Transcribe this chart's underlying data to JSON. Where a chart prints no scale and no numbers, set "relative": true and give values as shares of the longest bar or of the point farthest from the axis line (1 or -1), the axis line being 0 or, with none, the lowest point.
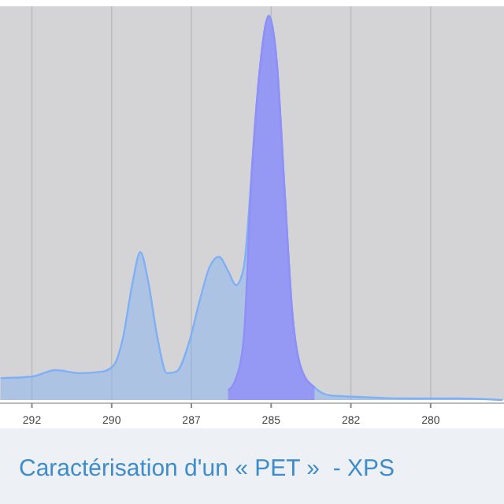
{
  "chart_data": {
    "type": "area",
    "title": "Caractérisation d'un « PET »  - XPS",
    "relative": true,
    "grid": "x",
    "xlim": [
      293.5,
      277.7
    ],
    "xticks": [
      {
        "value": 292.5,
        "label": "292"
      },
      290,
      {
        "value": 287.5,
        "label": "287"
      },
      285,
      {
        "value": 282.5,
        "label": "282"
      },
      280
    ],
    "series": [
      {
        "color": "#7fb0f5",
        "x": [
          293.48,
          292.5,
          291.76,
          291.02,
          290.29,
          289.94,
          289.65,
          289.35,
          289.1,
          288.86,
          288.56,
          288.27,
          287.97,
          287.58,
          287.23,
          286.94,
          286.64,
          286.35,
          286.1,
          285.86,
          285.61,
          285.36,
          285.07,
          284.82,
          284.58,
          284.33,
          284.04,
          283.64,
          283.15,
          282.17,
          280.69,
          279.21,
          277.74
        ],
        "values": [
          0.057,
          0.061,
          0.078,
          0.07,
          0.074,
          0.09,
          0.16,
          0.303,
          0.385,
          0.311,
          0.16,
          0.07,
          0.074,
          0.148,
          0.262,
          0.344,
          0.373,
          0.336,
          0.299,
          0.344,
          0.59,
          0.857,
          1,
          0.877,
          0.549,
          0.221,
          0.078,
          0.033,
          0.012,
          0.008,
          0.004,
          0.004,
          0
        ]
      },
      {
        "color": "#8f8ff7",
        "x": [
          286.35,
          286.1,
          285.86,
          285.61,
          285.36,
          285.07,
          284.82,
          284.58,
          284.33,
          284.04,
          283.64
        ],
        "values": [
          0.025,
          0.057,
          0.16,
          0.59,
          0.857,
          1,
          0.877,
          0.549,
          0.221,
          0.078,
          0.033
        ]
      }
    ]
  }
}
